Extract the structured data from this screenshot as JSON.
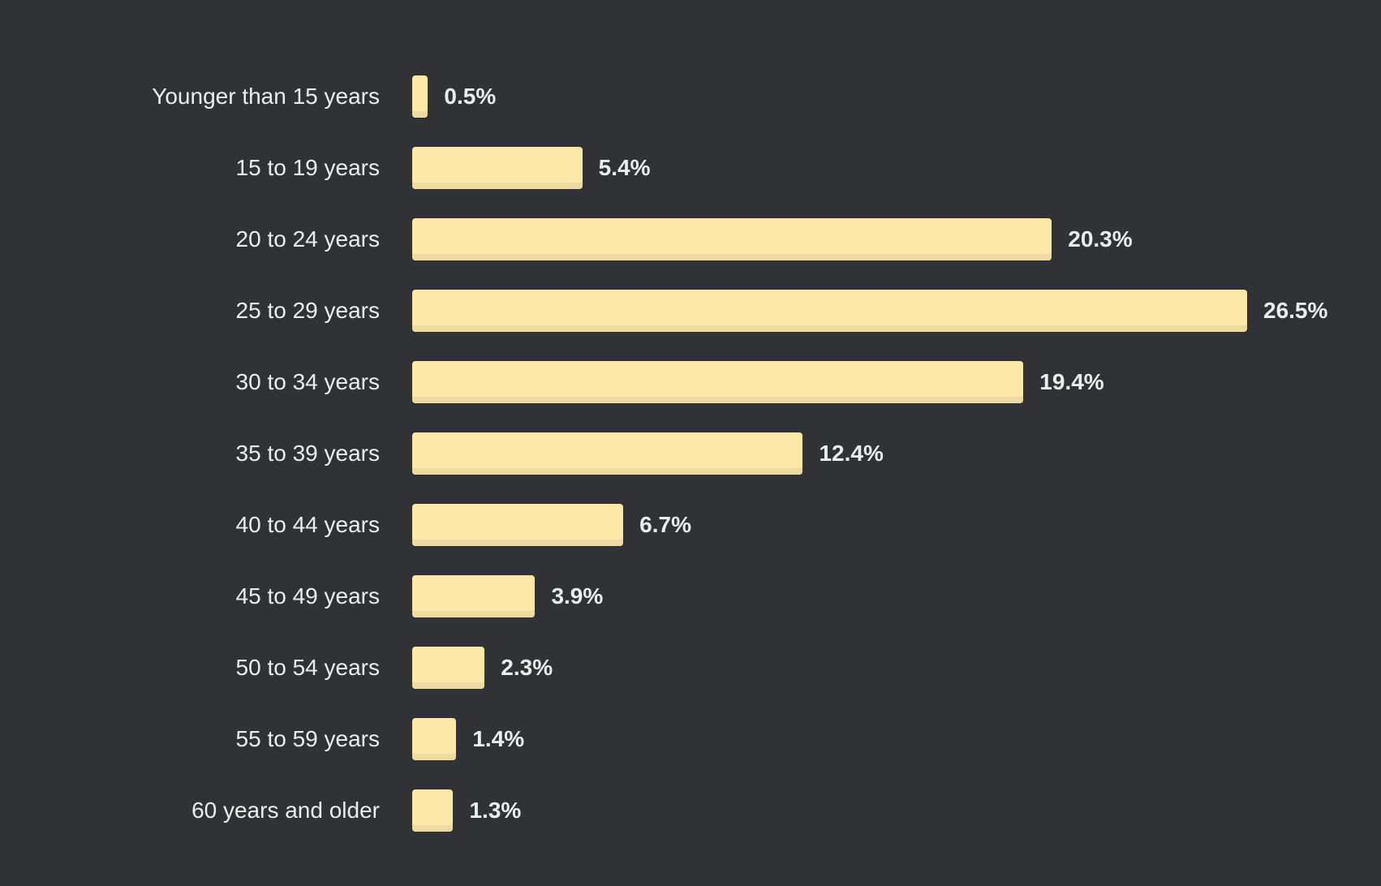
{
  "chart_data": {
    "type": "bar",
    "orientation": "horizontal",
    "categories": [
      "Younger than 15 years",
      "15 to 19 years",
      "20 to 24 years",
      "25 to 29 years",
      "30 to 34 years",
      "35 to 39 years",
      "40 to 44 years",
      "45 to 49 years",
      "50 to 54 years",
      "55 to 59 years",
      "60 years and older"
    ],
    "values": [
      0.5,
      5.4,
      20.3,
      26.5,
      19.4,
      12.4,
      6.7,
      3.9,
      2.3,
      1.4,
      1.3
    ],
    "value_labels": [
      "0.5%",
      "5.4%",
      "20.3%",
      "26.5%",
      "19.4%",
      "12.4%",
      "6.7%",
      "3.9%",
      "2.3%",
      "1.4%",
      "1.3%"
    ],
    "xlim": [
      0,
      26.5
    ],
    "grid": false,
    "legend": "none",
    "bar_color": "#fee8a7",
    "background_color": "#303236",
    "text_color": "#ececec"
  }
}
